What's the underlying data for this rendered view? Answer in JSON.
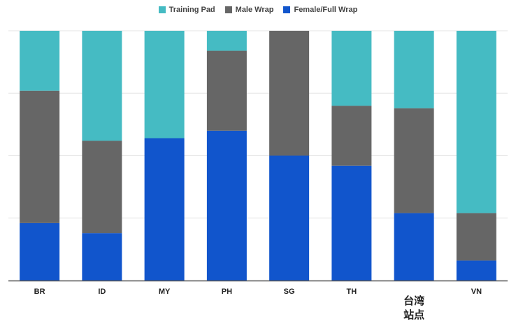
{
  "chart_data": {
    "type": "bar",
    "stacked": true,
    "normalized": true,
    "categories": [
      "BR",
      "ID",
      "MY",
      "PH",
      "SG",
      "TH",
      "台湾站点",
      "VN"
    ],
    "series": [
      {
        "name": "Female/Full Wrap",
        "color": "#1155cc",
        "values": [
          0.23,
          0.19,
          0.57,
          0.6,
          0.5,
          0.46,
          0.27,
          0.08
        ]
      },
      {
        "name": "Male Wrap",
        "color": "#666666",
        "values": [
          0.53,
          0.37,
          0.0,
          0.32,
          0.5,
          0.24,
          0.42,
          0.19
        ]
      },
      {
        "name": "Training Pad",
        "color": "#45bbc3",
        "values": [
          0.24,
          0.44,
          0.43,
          0.08,
          0.0,
          0.3,
          0.31,
          0.73
        ]
      }
    ],
    "legend_order": [
      "Training Pad",
      "Male Wrap",
      "Female/Full Wrap"
    ],
    "legend_position": "top-center",
    "ylim": [
      0,
      1
    ],
    "grid": true,
    "gridlines": 4
  },
  "colors": {
    "grid": "#e6e6e6",
    "axis": "#555555",
    "label": "#222222"
  }
}
